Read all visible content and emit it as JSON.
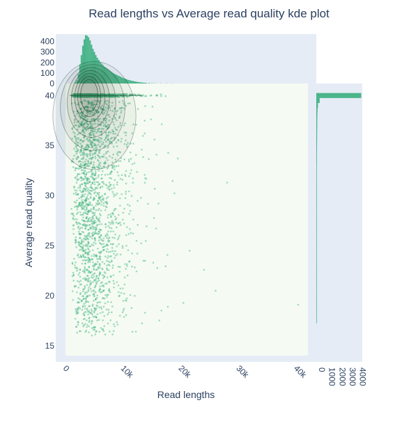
{
  "chart_data": {
    "type": "scatter",
    "title": "Read lengths vs Average read quality kde plot",
    "xlabel": "Read lengths",
    "ylabel": "Average read quality",
    "xlim": [
      -1200,
      42500
    ],
    "ylim": [
      13.4,
      41.2
    ],
    "x_ticks": [
      0,
      10000,
      20000,
      30000,
      40000
    ],
    "x_tick_labels": [
      "0",
      "10k",
      "20k",
      "30k",
      "40k"
    ],
    "y_ticks": [
      15,
      20,
      25,
      30,
      35,
      40
    ],
    "y_tick_labels": [
      "15",
      "20",
      "25",
      "30",
      "35",
      "40"
    ],
    "colors": {
      "scatter": "#3cb27a",
      "marginal": "#4ab58a",
      "plot_bg": "#f5fbf2",
      "marginal_bg": "#e5ecf6",
      "contour": "#1f3d2c",
      "text": "#2a3f5f"
    },
    "top_histogram": {
      "ylabel": "",
      "ylim": [
        0,
        470
      ],
      "y_ticks": [
        0,
        100,
        200,
        300,
        400
      ],
      "y_tick_labels": [
        "0",
        "100",
        "200",
        "300",
        "400"
      ],
      "bin_width": 250,
      "bins": [
        {
          "x": 2250,
          "count": 10
        },
        {
          "x": 2500,
          "count": 30
        },
        {
          "x": 2750,
          "count": 90
        },
        {
          "x": 3000,
          "count": 180
        },
        {
          "x": 3250,
          "count": 270
        },
        {
          "x": 3500,
          "count": 360
        },
        {
          "x": 3750,
          "count": 420
        },
        {
          "x": 4000,
          "count": 460
        },
        {
          "x": 4250,
          "count": 455
        },
        {
          "x": 4500,
          "count": 440
        },
        {
          "x": 4750,
          "count": 410
        },
        {
          "x": 5000,
          "count": 370
        },
        {
          "x": 5250,
          "count": 330
        },
        {
          "x": 5500,
          "count": 300
        },
        {
          "x": 5750,
          "count": 270
        },
        {
          "x": 6000,
          "count": 245
        },
        {
          "x": 6250,
          "count": 225
        },
        {
          "x": 6500,
          "count": 205
        },
        {
          "x": 6750,
          "count": 190
        },
        {
          "x": 7000,
          "count": 175
        },
        {
          "x": 7250,
          "count": 160
        },
        {
          "x": 7500,
          "count": 150
        },
        {
          "x": 7750,
          "count": 140
        },
        {
          "x": 8000,
          "count": 130
        },
        {
          "x": 8250,
          "count": 120
        },
        {
          "x": 8500,
          "count": 110
        },
        {
          "x": 8750,
          "count": 100
        },
        {
          "x": 9000,
          "count": 92
        },
        {
          "x": 9250,
          "count": 85
        },
        {
          "x": 9500,
          "count": 78
        },
        {
          "x": 9750,
          "count": 72
        },
        {
          "x": 10000,
          "count": 65
        },
        {
          "x": 10250,
          "count": 58
        },
        {
          "x": 10500,
          "count": 52
        },
        {
          "x": 10750,
          "count": 47
        },
        {
          "x": 11000,
          "count": 42
        },
        {
          "x": 11250,
          "count": 37
        },
        {
          "x": 11500,
          "count": 33
        },
        {
          "x": 11750,
          "count": 29
        },
        {
          "x": 12000,
          "count": 26
        },
        {
          "x": 12250,
          "count": 23
        },
        {
          "x": 12500,
          "count": 20
        },
        {
          "x": 12750,
          "count": 17
        },
        {
          "x": 13000,
          "count": 15
        },
        {
          "x": 13250,
          "count": 13
        },
        {
          "x": 13500,
          "count": 11
        },
        {
          "x": 13750,
          "count": 10
        },
        {
          "x": 14000,
          "count": 8
        },
        {
          "x": 14250,
          "count": 7
        },
        {
          "x": 14500,
          "count": 6
        },
        {
          "x": 15000,
          "count": 5
        },
        {
          "x": 15500,
          "count": 4
        },
        {
          "x": 16000,
          "count": 3
        },
        {
          "x": 17000,
          "count": 2
        },
        {
          "x": 18000,
          "count": 2
        },
        {
          "x": 19000,
          "count": 1
        },
        {
          "x": 21000,
          "count": 1
        }
      ]
    },
    "right_histogram": {
      "xlim": [
        0,
        4500
      ],
      "x_ticks": [
        0,
        1000,
        2000,
        3000,
        4000
      ],
      "x_tick_labels": [
        "0",
        "1000",
        "2000",
        "3000",
        "4000"
      ],
      "bin_width": 0.5,
      "bins": [
        {
          "y": 40,
          "count": 4400
        },
        {
          "y": 39.5,
          "count": 330
        },
        {
          "y": 39,
          "count": 160
        },
        {
          "y": 38.5,
          "count": 120
        },
        {
          "y": 38,
          "count": 100
        },
        {
          "y": 37.5,
          "count": 95
        },
        {
          "y": 37,
          "count": 90
        },
        {
          "y": 36.5,
          "count": 85
        },
        {
          "y": 36,
          "count": 80
        },
        {
          "y": 35.5,
          "count": 75
        },
        {
          "y": 35,
          "count": 70
        },
        {
          "y": 34.5,
          "count": 65
        },
        {
          "y": 34,
          "count": 60
        },
        {
          "y": 33.5,
          "count": 60
        },
        {
          "y": 33,
          "count": 55
        },
        {
          "y": 32.5,
          "count": 50
        },
        {
          "y": 32,
          "count": 45
        },
        {
          "y": 31.5,
          "count": 40
        },
        {
          "y": 31,
          "count": 40
        },
        {
          "y": 30.5,
          "count": 38
        },
        {
          "y": 30,
          "count": 35
        },
        {
          "y": 29.5,
          "count": 32
        },
        {
          "y": 29,
          "count": 30
        },
        {
          "y": 28.5,
          "count": 28
        },
        {
          "y": 28,
          "count": 26
        },
        {
          "y": 27.5,
          "count": 24
        },
        {
          "y": 27,
          "count": 22
        },
        {
          "y": 26.5,
          "count": 21
        },
        {
          "y": 26,
          "count": 20
        },
        {
          "y": 25.5,
          "count": 19
        },
        {
          "y": 25,
          "count": 18
        },
        {
          "y": 24.5,
          "count": 17
        },
        {
          "y": 24,
          "count": 16
        },
        {
          "y": 23.5,
          "count": 15
        },
        {
          "y": 23,
          "count": 14
        },
        {
          "y": 22.5,
          "count": 13
        },
        {
          "y": 22,
          "count": 12
        },
        {
          "y": 21.5,
          "count": 11
        },
        {
          "y": 21,
          "count": 10
        },
        {
          "y": 20.5,
          "count": 9
        },
        {
          "y": 20,
          "count": 8
        },
        {
          "y": 19.5,
          "count": 7
        },
        {
          "y": 19,
          "count": 6
        },
        {
          "y": 18.5,
          "count": 5
        },
        {
          "y": 18,
          "count": 4
        },
        {
          "y": 17.5,
          "count": 3
        }
      ]
    },
    "scatter_generator": {
      "count": 2600,
      "x_range": [
        1500,
        40500
      ],
      "y_range": [
        15,
        40
      ],
      "mode_x": 4500,
      "note_cluster_y": 40
    },
    "kde_contours": [
      {
        "cx": 4600,
        "cy": 40,
        "rx": 1500,
        "ry": 1.6
      },
      {
        "cx": 4600,
        "cy": 39.9,
        "rx": 2000,
        "ry": 2.0
      },
      {
        "cx": 4700,
        "cy": 39.8,
        "rx": 2600,
        "ry": 2.4
      },
      {
        "cx": 4800,
        "cy": 39.6,
        "rx": 3300,
        "ry": 2.9
      },
      {
        "cx": 5000,
        "cy": 39.3,
        "rx": 4200,
        "ry": 3.5
      },
      {
        "cx": 5200,
        "cy": 38.8,
        "rx": 5600,
        "ry": 4.3
      },
      {
        "cx": 5500,
        "cy": 38.0,
        "rx": 7200,
        "ry": 5.4
      }
    ]
  }
}
